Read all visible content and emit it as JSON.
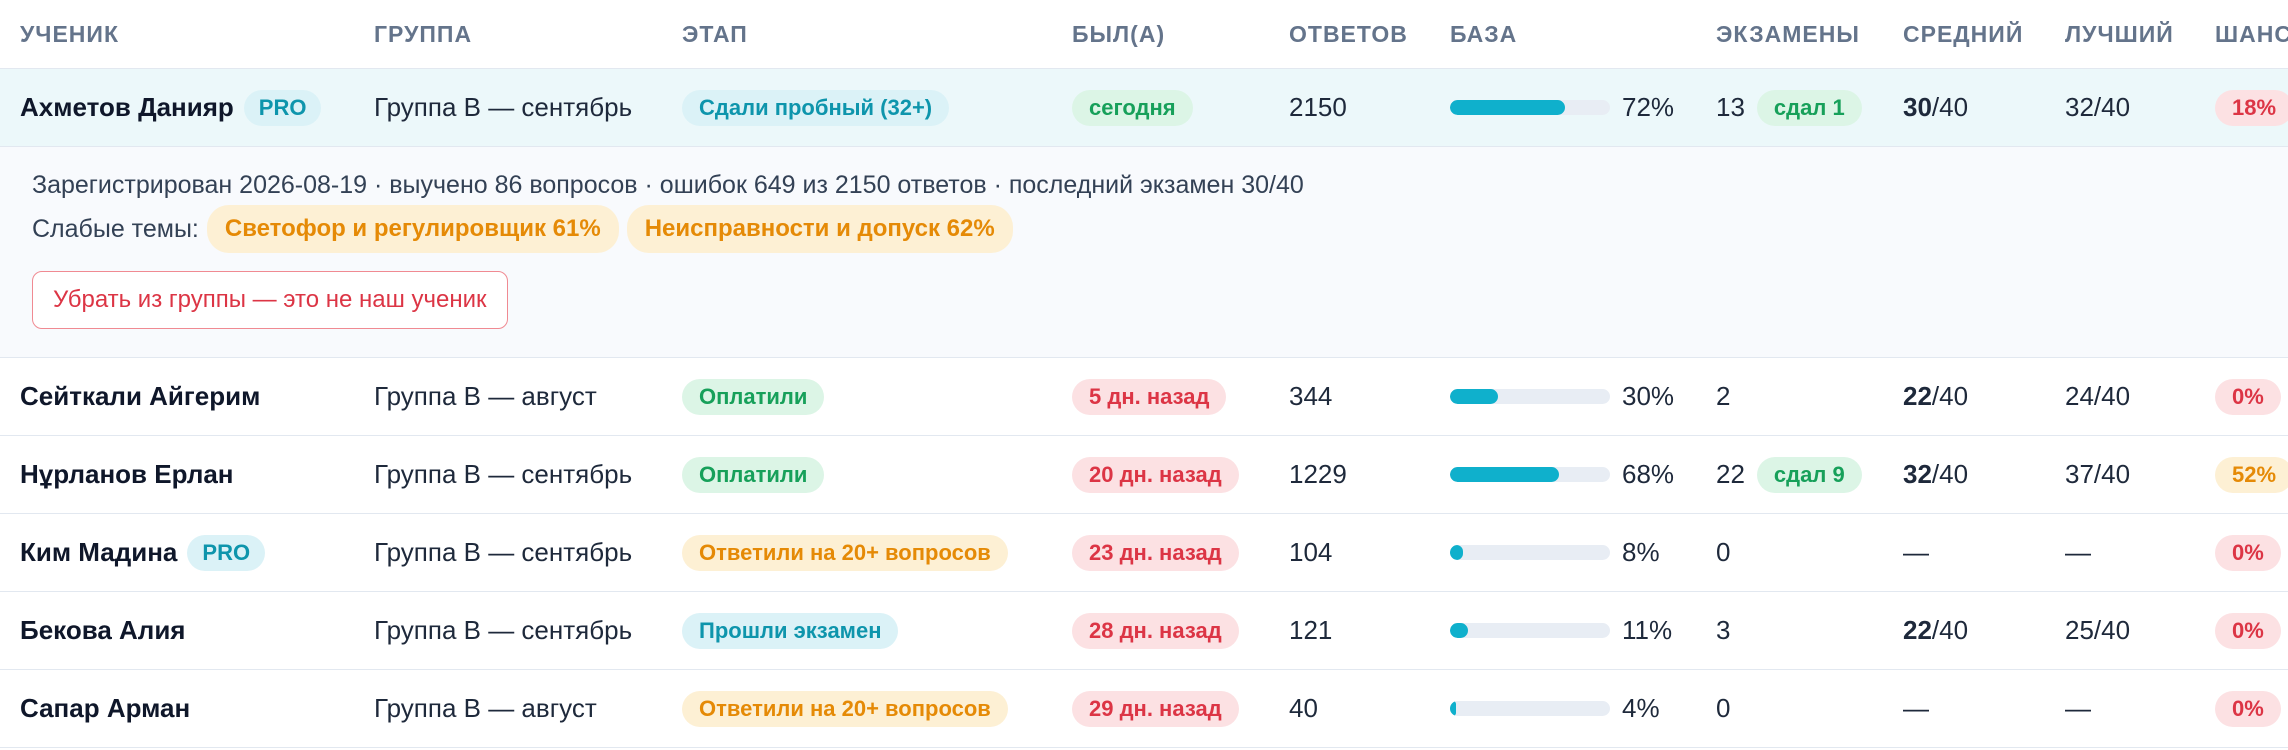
{
  "header": {
    "student": "УЧЕНИК",
    "group": "ГРУППА",
    "stage": "ЭТАП",
    "seen": "БЫЛ(А)",
    "answers": "ОТВЕТОВ",
    "base": "БАЗА",
    "exams": "ЭКЗАМЕНЫ",
    "avg": "СРЕДНИЙ",
    "best": "ЛУЧШИЙ",
    "chance": "ШАНС"
  },
  "rows": [
    {
      "name": "Ахметов Данияр",
      "pro": "PRO",
      "group": "Группа B — сентябрь",
      "stage": "Сдали пробный (32+)",
      "seen": "сегодня",
      "answers": "2150",
      "base_pct": "72%",
      "base_fraction": 0.72,
      "exams": "13",
      "passed": "сдал 1",
      "avg_num": "30",
      "avg_den": "/40",
      "best": "32/40",
      "chance": "18%"
    },
    {
      "name": "Сейткали Айгерим",
      "pro": "",
      "group": "Группа B — август",
      "stage": "Оплатили",
      "seen": "5 дн. назад",
      "answers": "344",
      "base_pct": "30%",
      "base_fraction": 0.3,
      "exams": "2",
      "passed": "",
      "avg_num": "22",
      "avg_den": "/40",
      "best": "24/40",
      "chance": "0%"
    },
    {
      "name": "Нұрланов Ерлан",
      "pro": "",
      "group": "Группа B — сентябрь",
      "stage": "Оплатили",
      "seen": "20 дн. назад",
      "answers": "1229",
      "base_pct": "68%",
      "base_fraction": 0.68,
      "exams": "22",
      "passed": "сдал 9",
      "avg_num": "32",
      "avg_den": "/40",
      "best": "37/40",
      "chance": "52%"
    },
    {
      "name": "Ким Мадина",
      "pro": "PRO",
      "group": "Группа B — сентябрь",
      "stage": "Ответили на 20+ вопросов",
      "seen": "23 дн. назад",
      "answers": "104",
      "base_pct": "8%",
      "base_fraction": 0.08,
      "exams": "0",
      "passed": "",
      "avg_num": "—",
      "avg_den": "",
      "best": "—",
      "chance": "0%"
    },
    {
      "name": "Бекова Алия",
      "pro": "",
      "group": "Группа B — сентябрь",
      "stage": "Прошли экзамен",
      "seen": "28 дн. назад",
      "answers": "121",
      "base_pct": "11%",
      "base_fraction": 0.11,
      "exams": "3",
      "passed": "",
      "avg_num": "22",
      "avg_den": "/40",
      "best": "25/40",
      "chance": "0%"
    },
    {
      "name": "Сапар Арман",
      "pro": "",
      "group": "Группа B — август",
      "stage": "Ответили на 20+ вопросов",
      "seen": "29 дн. назад",
      "answers": "40",
      "base_pct": "4%",
      "base_fraction": 0.04,
      "exams": "0",
      "passed": "",
      "avg_num": "—",
      "avg_den": "",
      "best": "—",
      "chance": "0%"
    }
  ],
  "detail": {
    "summary": "Зарегистрирован 2026-08-19 · выучено 86 вопросов · ошибок 649 из 2150 ответов · последний экзамен 30/40",
    "weak_label": "Слабые темы:",
    "weak_topics": [
      "Светофор и регулировщик 61%",
      "Неисправности и допуск 62%"
    ],
    "remove_button": "Убрать из группы — это не наш ученик"
  },
  "colors": {
    "accent": "#0fb0cc",
    "selected_row": "#ecf8fa",
    "green": "#17a05a",
    "orange": "#e58a06",
    "red": "#dc3545"
  }
}
